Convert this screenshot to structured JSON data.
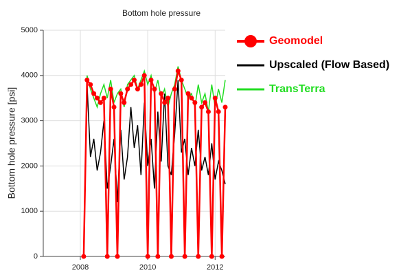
{
  "chart_data": {
    "type": "line",
    "title": "Bottom hole pressure",
    "y_label": "Bottom hole pressure [psi]",
    "x": [
      2008.1,
      2008.2,
      2008.3,
      2008.4,
      2008.5,
      2008.6,
      2008.7,
      2008.8,
      2008.9,
      2009.0,
      2009.1,
      2009.2,
      2009.3,
      2009.4,
      2009.5,
      2009.6,
      2009.7,
      2009.8,
      2009.9,
      2010.0,
      2010.1,
      2010.2,
      2010.3,
      2010.4,
      2010.5,
      2010.6,
      2010.7,
      2010.8,
      2010.9,
      2011.0,
      2011.1,
      2011.2,
      2011.3,
      2011.4,
      2011.5,
      2011.6,
      2011.7,
      2011.8,
      2011.9,
      2012.0,
      2012.1,
      2012.2,
      2012.3
    ],
    "series": [
      {
        "name": "TransTerra",
        "color": "#22dd22",
        "values": [
          0,
          4000,
          3700,
          3500,
          3300,
          3600,
          3800,
          3500,
          3900,
          3400,
          3600,
          3700,
          3300,
          3800,
          3900,
          4000,
          3700,
          3900,
          4100,
          3800,
          4000,
          3600,
          3900,
          3500,
          3700,
          3300,
          3600,
          3800,
          4200,
          3900,
          3700,
          3500,
          3600,
          3300,
          3800,
          3400,
          3600,
          3200,
          3800,
          3300,
          3700,
          3400,
          3900
        ]
      },
      {
        "name": "Upscaled (Flow Based)",
        "color": "#000000",
        "values": [
          0,
          3800,
          2200,
          2600,
          1900,
          2300,
          3000,
          1500,
          2000,
          2600,
          1200,
          2800,
          1700,
          2200,
          3300,
          2400,
          2900,
          1800,
          3400,
          2000,
          2600,
          1500,
          3200,
          2100,
          3600,
          2000,
          1800,
          2700,
          3900,
          2300,
          2600,
          1800,
          2400,
          2000,
          2800,
          1900,
          2200,
          1800,
          2500,
          1700,
          2100,
          1900,
          1600
        ]
      },
      {
        "name": "Geomodel",
        "color": "#ff0000",
        "marker": true,
        "values": [
          0,
          3900,
          3800,
          3600,
          3500,
          3400,
          3500,
          0,
          3700,
          3300,
          0,
          3600,
          3400,
          3700,
          3800,
          3900,
          3700,
          3800,
          4000,
          0,
          3900,
          3700,
          0,
          3600,
          3400,
          3500,
          0,
          3700,
          4100,
          3900,
          0,
          3600,
          3500,
          3400,
          0,
          3300,
          3400,
          3200,
          0,
          3500,
          3200,
          0,
          3300
        ]
      }
    ],
    "xlim": [
      2006.9,
      2012.3
    ],
    "xticks": [
      2008,
      2010,
      2012
    ],
    "ylim": [
      0,
      5000
    ],
    "yticks": [
      0,
      1000,
      2000,
      3000,
      4000,
      5000
    ],
    "grid": true
  }
}
